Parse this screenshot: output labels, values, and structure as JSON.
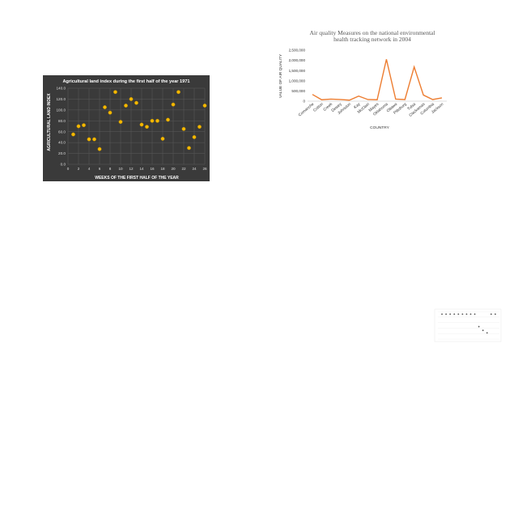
{
  "chart_data": [
    {
      "type": "scatter",
      "title": "Agricultural land index during the first half of the year 1971",
      "xlabel": "WEEKS OF THE FIRST HALF OF THE YEAR",
      "ylabel": "AGRICULTURAL LAND INDEX",
      "xlim": [
        0,
        26
      ],
      "ylim": [
        0,
        140
      ],
      "x_ticks": [
        "0",
        "2",
        "4",
        "6",
        "8",
        "10",
        "12",
        "14",
        "16",
        "18",
        "20",
        "22",
        "24",
        "26"
      ],
      "y_ticks": [
        "0.0",
        "20.0",
        "40.0",
        "60.0",
        "80.0",
        "100.0",
        "120.0",
        "140.0"
      ],
      "grid": true,
      "series": [
        {
          "x": [
            1,
            2,
            3,
            4,
            5,
            6,
            7,
            8,
            9,
            10,
            11,
            12,
            13,
            14,
            15,
            16,
            17,
            18,
            19,
            20,
            21,
            22,
            23,
            24,
            25,
            26
          ],
          "y": [
            55,
            70,
            72,
            46,
            46,
            28,
            105,
            95,
            133,
            78,
            108,
            120,
            113,
            73,
            69,
            80,
            80,
            47,
            82,
            110,
            133,
            65,
            30,
            50,
            69,
            108
          ]
        }
      ],
      "colors": {
        "background": "#3a3a3a",
        "point": "#f5b800",
        "text": "#ffffff"
      }
    },
    {
      "type": "line",
      "title": "Air quality Measures on the national environmental health tracking network in 2004",
      "xlabel": "COUNTRY",
      "ylabel": "VALUE OF AIR QUALITY",
      "ylim": [
        0,
        2500000
      ],
      "y_ticks": [
        "0",
        "500,000",
        "1,000,000",
        "1,500,000",
        "2,000,000",
        "2,500,000"
      ],
      "categories": [
        "Comanche",
        "Cotton",
        "Creek",
        "Dewey",
        "Johnston",
        "Kay",
        "McClain",
        "Mayes",
        "Oklahoma",
        "Ottawa",
        "Pittsburg",
        "Tulsa",
        "Clackamas",
        "Columbia",
        "Jackson"
      ],
      "series": [
        {
          "values": [
            330000,
            70000,
            100000,
            80000,
            50000,
            250000,
            80000,
            70000,
            2050000,
            100000,
            80000,
            1680000,
            300000,
            80000,
            160000
          ]
        }
      ],
      "grid": false,
      "colors": {
        "line": "#ed7d31",
        "axis": "#333333"
      }
    },
    {
      "type": "scatter",
      "title": "",
      "xlabel": "",
      "ylabel": "",
      "grid": true,
      "series": [
        {
          "x": [
            1,
            2,
            3,
            4,
            5,
            6,
            7,
            8,
            9,
            10,
            11,
            12,
            13,
            14
          ],
          "y": [
            1,
            1,
            1,
            1,
            1,
            1,
            1,
            1,
            1,
            0.5,
            0.35,
            0.25,
            1,
            1
          ]
        }
      ],
      "colors": {
        "point": "#555555"
      }
    }
  ]
}
